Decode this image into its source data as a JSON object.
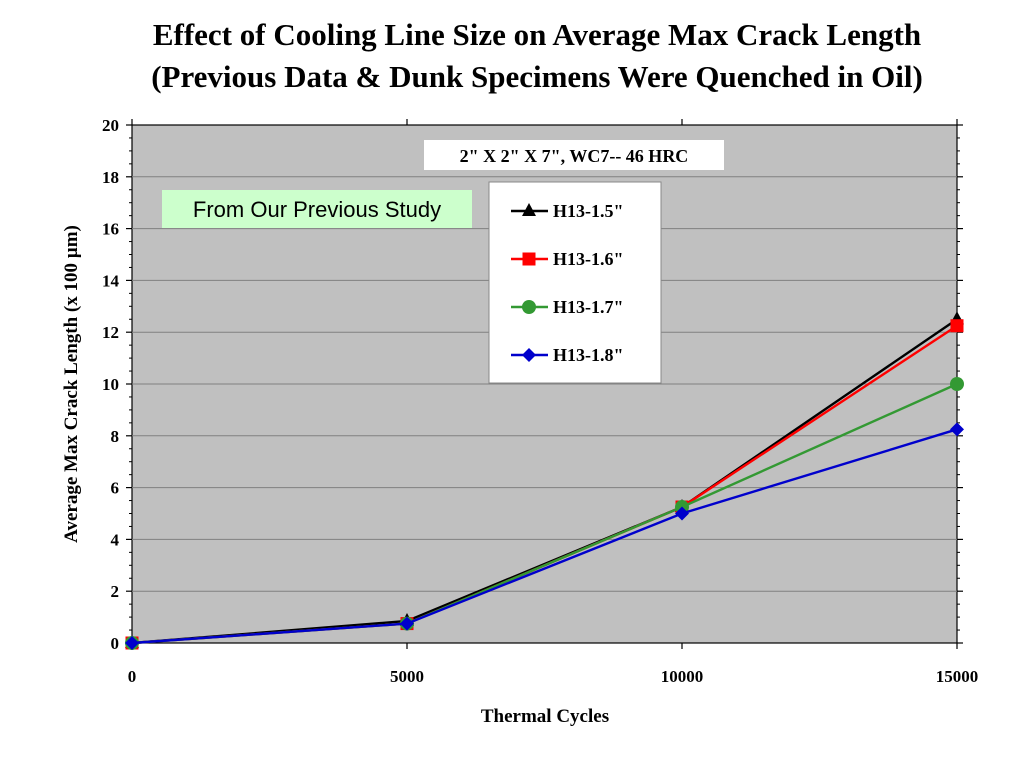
{
  "title": {
    "line1": "Effect of Cooling Line Size on Average Max Crack Length",
    "line2": "(Previous Data & Dunk Specimens Were Quenched in Oil)"
  },
  "chart_data": {
    "type": "line",
    "subtitle": "2\" X 2\" X 7\", WC7-- 46 HRC",
    "annotation": "From Our Previous Study",
    "xlabel": "Thermal Cycles",
    "ylabel": "Average Max Crack Length (x 100 µm)",
    "x": [
      0,
      5000,
      10000,
      15000
    ],
    "xticks": [
      0,
      5000,
      10000,
      15000
    ],
    "xlim": [
      0,
      15000
    ],
    "yticks": [
      0,
      2,
      4,
      6,
      8,
      10,
      12,
      14,
      16,
      18,
      20
    ],
    "ylim": [
      0,
      20
    ],
    "grid": true,
    "legend_position": "top-center",
    "plot_background": "#c0c0c0",
    "annotation_background": "#ccffcc",
    "series": [
      {
        "name": "H13-1.5\"",
        "values": [
          0,
          0.85,
          5.25,
          12.5
        ],
        "color": "#000000",
        "marker": "triangle"
      },
      {
        "name": "H13-1.6\"",
        "values": [
          0,
          0.75,
          5.25,
          12.25
        ],
        "color": "#ff0000",
        "marker": "square"
      },
      {
        "name": "H13-1.7\"",
        "values": [
          0,
          0.75,
          5.25,
          10.0
        ],
        "color": "#339933",
        "marker": "circle"
      },
      {
        "name": "H13-1.8\"",
        "values": [
          0,
          0.75,
          5.0,
          8.25
        ],
        "color": "#0000cc",
        "marker": "diamond"
      }
    ]
  }
}
